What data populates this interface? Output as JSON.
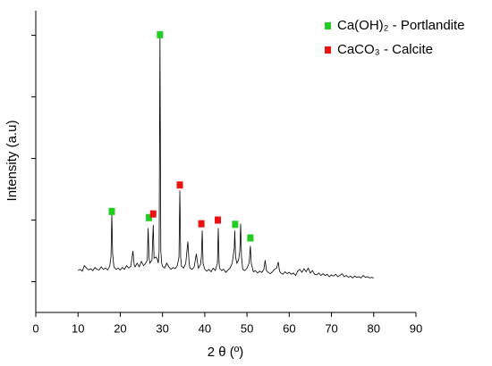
{
  "chart_data": {
    "type": "line",
    "x_label": "2 θ (º)",
    "y_label": "Intensity (a.u)",
    "xlim": [
      0,
      90
    ],
    "xticks": [
      0,
      10,
      20,
      30,
      40,
      50,
      60,
      70,
      80,
      90
    ],
    "ylim": [
      0.5,
      5.4
    ],
    "yticks": [
      1,
      2,
      3,
      4,
      5
    ],
    "pattern": {
      "color": "#000000",
      "x": [
        10,
        10.5,
        11,
        11.5,
        12,
        12.5,
        13,
        13.5,
        14,
        14.5,
        15,
        15.5,
        16,
        16.5,
        17,
        17.5,
        17.8,
        18,
        18.2,
        18.5,
        19,
        19.5,
        20,
        20.5,
        21,
        21.5,
        22,
        22.5,
        23,
        23.3,
        23.5,
        24,
        24.5,
        25,
        25.5,
        26,
        26.4,
        26.6,
        26.8,
        27,
        27.5,
        27.8,
        28,
        28.5,
        28.8,
        29,
        29.2,
        29.4,
        29.6,
        29.8,
        30,
        30.5,
        31,
        31.5,
        32,
        32.5,
        33,
        33.5,
        33.9,
        34.1,
        34.3,
        34.5,
        35,
        35.5,
        36,
        36.3,
        36.5,
        37,
        37.5,
        38,
        38.3,
        38.5,
        39,
        39.2,
        39.4,
        39.6,
        40,
        40.5,
        41,
        41.5,
        42,
        42.5,
        43,
        43.2,
        43.4,
        43.5,
        44,
        44.5,
        45,
        45.5,
        46,
        46.5,
        47,
        47.1,
        47.3,
        47.6,
        48,
        48.3,
        48.5,
        48.7,
        49,
        49.5,
        50,
        50.5,
        50.8,
        51,
        51.5,
        52,
        52.5,
        53,
        53.5,
        54,
        54.3,
        54.6,
        55,
        55.5,
        56,
        56.5,
        57,
        57.4,
        57.7,
        58,
        58.5,
        59,
        59.5,
        60,
        60.5,
        61,
        61.5,
        62,
        62.5,
        63,
        63.5,
        64,
        64.5,
        65,
        65.5,
        66,
        66.5,
        67,
        67.5,
        68,
        68.5,
        69,
        69.5,
        70,
        70.5,
        71,
        71.5,
        72,
        72.5,
        73,
        73.5,
        74,
        74.5,
        75,
        75.5,
        76,
        76.5,
        77,
        77.5,
        78,
        78.5,
        79,
        79.5,
        80
      ],
      "values": [
        1.18,
        1.2,
        1.17,
        1.26,
        1.22,
        1.19,
        1.21,
        1.18,
        1.23,
        1.2,
        1.19,
        1.24,
        1.2,
        1.22,
        1.19,
        1.25,
        1.4,
        2.09,
        1.45,
        1.24,
        1.2,
        1.22,
        1.19,
        1.23,
        1.2,
        1.26,
        1.22,
        1.25,
        1.5,
        1.27,
        1.24,
        1.3,
        1.24,
        1.33,
        1.26,
        1.3,
        1.35,
        1.87,
        1.4,
        1.3,
        1.35,
        1.92,
        1.38,
        1.4,
        1.36,
        1.3,
        1.5,
        5.0,
        1.5,
        1.3,
        1.25,
        1.22,
        1.3,
        1.24,
        1.2,
        1.23,
        1.21,
        1.26,
        1.4,
        2.48,
        1.4,
        1.25,
        1.22,
        1.3,
        1.65,
        1.3,
        1.22,
        1.2,
        1.24,
        1.45,
        1.3,
        1.22,
        1.28,
        1.4,
        1.83,
        1.3,
        1.2,
        1.17,
        1.2,
        1.16,
        1.22,
        1.18,
        1.3,
        1.87,
        1.3,
        1.22,
        1.18,
        1.2,
        1.15,
        1.19,
        1.22,
        1.3,
        1.55,
        1.83,
        1.4,
        1.3,
        1.35,
        1.5,
        1.94,
        1.4,
        1.2,
        1.18,
        1.22,
        1.3,
        1.58,
        1.3,
        1.16,
        1.18,
        1.14,
        1.17,
        1.15,
        1.2,
        1.35,
        1.18,
        1.15,
        1.13,
        1.16,
        1.2,
        1.22,
        1.32,
        1.17,
        1.14,
        1.12,
        1.16,
        1.13,
        1.15,
        1.12,
        1.14,
        1.1,
        1.17,
        1.2,
        1.15,
        1.21,
        1.16,
        1.22,
        1.14,
        1.18,
        1.12,
        1.11,
        1.14,
        1.1,
        1.13,
        1.1,
        1.12,
        1.08,
        1.11,
        1.09,
        1.12,
        1.08,
        1.1,
        1.13,
        1.08,
        1.1,
        1.07,
        1.09,
        1.06,
        1.09,
        1.07,
        1.08,
        1.06,
        1.1,
        1.07,
        1.08,
        1.06,
        1.07,
        1.06
      ]
    },
    "series": [
      {
        "name": "Ca(OH)₂ - Portlandite",
        "color": "#22cc22",
        "x": [
          18.0,
          26.8,
          29.4,
          47.2,
          50.8
        ],
        "values": [
          2.14,
          2.04,
          5.01,
          1.93,
          1.71
        ]
      },
      {
        "name": "CaCO₃  - Calcite",
        "color": "#ee1111",
        "x": [
          27.8,
          34.1,
          39.2,
          43.1
        ],
        "values": [
          2.1,
          2.57,
          1.94,
          2.0
        ]
      }
    ]
  }
}
